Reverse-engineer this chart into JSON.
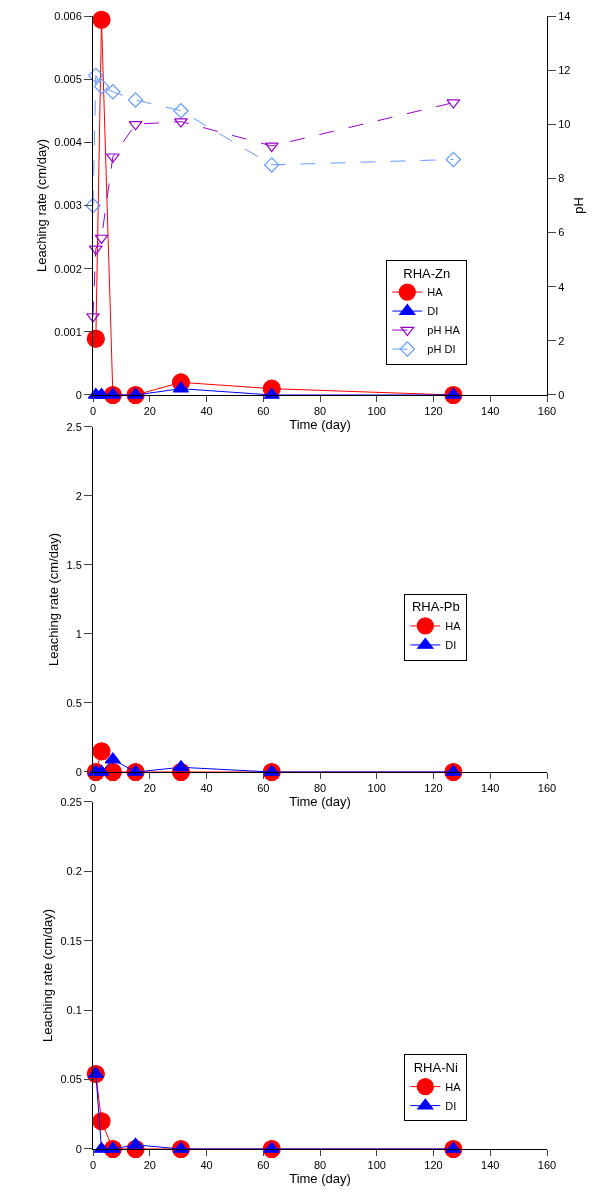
{
  "chart_data": [
    {
      "type": "line",
      "xlabel": "Time (day)",
      "ylabel": "Leaching rate (cm/day)",
      "y2label": "pH",
      "legend_title": "RHA-Zn",
      "legend": "bottom right",
      "xlim": [
        0,
        160
      ],
      "xticks": [
        0,
        20,
        40,
        60,
        80,
        100,
        120,
        140,
        160
      ],
      "ylim": [
        0,
        0.006
      ],
      "yticks": [
        0,
        0.001,
        0.002,
        0.003,
        0.004,
        0.005,
        0.006
      ],
      "y2lim": [
        0,
        14
      ],
      "y2ticks": [
        0,
        2,
        4,
        6,
        8,
        10,
        12,
        14
      ],
      "series": [
        {
          "name": "HA",
          "color": "#ff0000",
          "marker": "circle",
          "line_style": "solid",
          "x": [
            1,
            3,
            7,
            15,
            31,
            63,
            127
          ],
          "values": [
            0.00089,
            0.00594,
            0,
            0,
            0.0002,
            0.0001,
            0
          ]
        },
        {
          "name": "DI",
          "color": "#0000ff",
          "marker": "triangle",
          "line_style": "solid",
          "x": [
            1,
            3,
            7,
            15,
            31,
            63,
            127
          ],
          "values": [
            0,
            0,
            0,
            0,
            0.0001,
            0,
            0
          ]
        },
        {
          "name": "pH HA",
          "color": "#9900cc",
          "marker": "triangle-down-open",
          "line_style": "dashed",
          "axis": "y2",
          "x": [
            0,
            1,
            3,
            7,
            15,
            31,
            63,
            127
          ],
          "values": [
            2.9,
            5.4,
            5.8,
            8.8,
            10.0,
            10.1,
            9.2,
            10.8
          ]
        },
        {
          "name": "pH DI",
          "color": "#6699ff",
          "marker": "diamond-open",
          "line_style": "dashed",
          "axis": "y2",
          "x": [
            0,
            1,
            3,
            7,
            15,
            31,
            63,
            127
          ],
          "values": [
            7.0,
            11.8,
            11.4,
            11.2,
            10.9,
            10.5,
            8.5,
            8.7
          ]
        }
      ]
    },
    {
      "type": "line",
      "xlabel": "Time (day)",
      "ylabel": "Leaching rate (cm/day)",
      "legend_title": "RHA-Pb",
      "legend": "right",
      "xlim": [
        0,
        160
      ],
      "xticks": [
        0,
        20,
        40,
        60,
        80,
        100,
        120,
        140,
        160
      ],
      "ylim": [
        0,
        2.5
      ],
      "yticks": [
        0,
        0.5,
        1,
        1.5,
        2,
        2.5
      ],
      "series": [
        {
          "name": "HA",
          "color": "#ff0000",
          "marker": "circle",
          "line_style": "solid",
          "x": [
            1,
            3,
            7,
            15,
            31,
            63,
            127
          ],
          "values": [
            0,
            0.15,
            0,
            0,
            0,
            0,
            0
          ]
        },
        {
          "name": "DI",
          "color": "#0000ff",
          "marker": "triangle",
          "line_style": "solid",
          "x": [
            1,
            3,
            7,
            15,
            31,
            63,
            127
          ],
          "values": [
            0,
            0,
            0.09,
            0,
            0.034,
            0,
            0
          ]
        }
      ]
    },
    {
      "type": "line",
      "xlabel": "Time (day)",
      "ylabel": "Leaching rate (cm/day)",
      "legend_title": "RHA-Ni",
      "legend": "bottom right",
      "xlim": [
        0,
        160
      ],
      "xticks": [
        0,
        20,
        40,
        60,
        80,
        100,
        120,
        140,
        160
      ],
      "ylim": [
        0,
        0.25
      ],
      "yticks": [
        0,
        0.05,
        0.1,
        0.15,
        0.2,
        0.25
      ],
      "series": [
        {
          "name": "HA",
          "color": "#ff0000",
          "marker": "circle",
          "line_style": "solid",
          "x": [
            1,
            3,
            7,
            15,
            31,
            63,
            127
          ],
          "values": [
            0.054,
            0.02,
            0,
            0,
            0,
            0,
            0
          ]
        },
        {
          "name": "DI",
          "color": "#0000ff",
          "marker": "triangle",
          "line_style": "solid",
          "x": [
            1,
            3,
            7,
            15,
            31,
            63,
            127
          ],
          "values": [
            0.054,
            0,
            0,
            0.003,
            0,
            0,
            0
          ]
        }
      ]
    }
  ]
}
